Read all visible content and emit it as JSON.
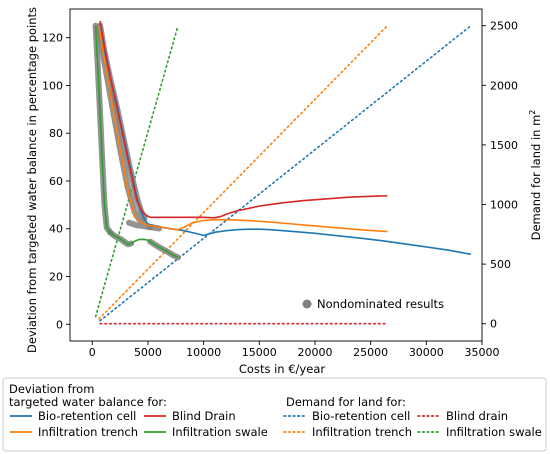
{
  "chart_data": {
    "type": "line",
    "xlabel": "Costs in €/year",
    "ylabel_left": "Deviation from targeted water balance in percentage points",
    "ylabel_right_base": "Demand for land in m",
    "ylabel_right_sup": "2",
    "xlim": [
      -2000,
      35000
    ],
    "ylim_left": [
      -7,
      132
    ],
    "ylim_right": [
      -145,
      2640
    ],
    "x_ticks": [
      0,
      5000,
      10000,
      15000,
      20000,
      25000,
      30000,
      35000
    ],
    "y_left_ticks": [
      0,
      20,
      40,
      60,
      80,
      100,
      120
    ],
    "y_right_ticks": [
      0,
      500,
      1000,
      1500,
      2000,
      2500
    ],
    "colors": {
      "bio": "#1f77b4",
      "trench": "#ff7f0e",
      "drain": "#d62728",
      "swale": "#2ca02c",
      "nondominated": "#808080"
    },
    "series": [
      {
        "name": "Bio-retention cell",
        "key": "bio",
        "axis": "left",
        "style": "solid",
        "x": [
          700,
          1100,
          1600,
          2200,
          2800,
          3400,
          4000,
          4400,
          4700,
          5000,
          6000,
          7000,
          8000,
          9000,
          10000,
          11000,
          12000,
          13000,
          14000,
          15000,
          16000,
          18000,
          20000,
          22000,
          24000,
          26000,
          28000,
          30000,
          32000,
          34000
        ],
        "y": [
          126,
          115,
          104,
          92,
          79,
          66,
          53,
          47,
          44,
          42,
          40.8,
          40,
          39.4,
          38.4,
          37.2,
          38.5,
          39.2,
          39.6,
          39.8,
          39.8,
          39.6,
          38.9,
          38.1,
          37.1,
          36.1,
          35,
          33.7,
          32.4,
          31,
          29.3
        ]
      },
      {
        "name": "Blind Drain",
        "key": "drain",
        "axis": "left",
        "style": "solid",
        "x": [
          700,
          1100,
          1600,
          2200,
          2800,
          3400,
          4000,
          4500,
          4900,
          5200,
          6000,
          8000,
          10000,
          11000,
          11600,
          12000,
          13000,
          15000,
          17000,
          19000,
          21000,
          23000,
          25000,
          26500
        ],
        "y": [
          127,
          116,
          104,
          91,
          78,
          65,
          52,
          47,
          45.5,
          44.8,
          44.8,
          44.8,
          44.8,
          44.6,
          45.2,
          46,
          47.5,
          49.5,
          50.8,
          51.8,
          52.5,
          53.2,
          53.6,
          53.8
        ]
      },
      {
        "name": "Infiltration trench",
        "key": "trench",
        "axis": "left",
        "style": "solid",
        "x": [
          600,
          1000,
          1500,
          2000,
          2600,
          3200,
          3800,
          4400,
          5000,
          6000,
          7000,
          7600,
          8200,
          9000,
          10000,
          11000,
          12000,
          13000,
          14000,
          16000,
          18000,
          20000,
          22000,
          24000,
          26500
        ],
        "y": [
          125,
          113,
          100,
          86,
          71,
          56,
          45,
          42.5,
          41.5,
          40.8,
          40,
          39.5,
          40.5,
          42.5,
          43.5,
          43.8,
          43.8,
          43.6,
          43.4,
          42.8,
          42,
          41.2,
          40.4,
          39.6,
          38.8
        ]
      },
      {
        "name": "Infiltration swale",
        "key": "swale",
        "axis": "left",
        "style": "solid",
        "x": [
          300,
          500,
          700,
          900,
          1100,
          1300,
          1600,
          2000,
          2600,
          3200,
          3500,
          3800,
          4200,
          4600,
          5000,
          5400,
          5800,
          6300,
          6800,
          7300,
          7700
        ],
        "y": [
          125,
          108,
          88,
          68,
          50,
          40.5,
          38.5,
          37,
          35.5,
          33.5,
          33.8,
          34.8,
          35.5,
          35.6,
          35.2,
          34,
          32.8,
          31.5,
          30.2,
          28.8,
          28
        ]
      },
      {
        "name": "Bio-retention cell",
        "key": "bio",
        "axis": "right",
        "style": "dotted",
        "x": [
          700,
          34000
        ],
        "y": [
          25,
          2500
        ]
      },
      {
        "name": "Blind drain",
        "key": "drain",
        "axis": "right",
        "style": "dotted",
        "x": [
          700,
          26500
        ],
        "y": [
          0,
          0
        ]
      },
      {
        "name": "Infiltration trench",
        "key": "trench",
        "axis": "right",
        "style": "dotted",
        "x": [
          600,
          26500
        ],
        "y": [
          40,
          2500
        ]
      },
      {
        "name": "Infiltration swale",
        "key": "swale",
        "axis": "right",
        "style": "dotted",
        "x": [
          300,
          7700
        ],
        "y": [
          60,
          2500
        ]
      }
    ],
    "nondominated": {
      "name": "Nondominated results",
      "paths": [
        {
          "x": [
            600,
            1000,
            1500,
            2000,
            2600,
            3200,
            3800,
            4200,
            4600
          ],
          "y": [
            124,
            112,
            99,
            86,
            71,
            57,
            47,
            44,
            43
          ]
        },
        {
          "x": [
            700,
            1100,
            1600,
            2200,
            2800,
            3400,
            4000,
            4400,
            4700
          ],
          "y": [
            125,
            114,
            103,
            91,
            78,
            65,
            53,
            47,
            44.5
          ]
        },
        {
          "x": [
            300,
            500,
            700,
            900,
            1100,
            1300,
            1600
          ],
          "y": [
            125,
            108,
            88,
            68,
            50,
            40.5,
            38.5
          ]
        },
        {
          "x": [
            1600,
            2000,
            2600,
            3200,
            3500
          ],
          "y": [
            38.5,
            37,
            35.5,
            33.5,
            33.8
          ]
        },
        {
          "x": [
            3300,
            4000,
            4800,
            5200
          ],
          "y": [
            42.5,
            41.5,
            41,
            40.6
          ]
        },
        {
          "x": [
            5200,
            5800,
            6300,
            6800,
            7300,
            7700
          ],
          "y": [
            34.6,
            32.8,
            31.5,
            30.2,
            28.8,
            28
          ]
        },
        {
          "x": [
            5100,
            5600,
            6000
          ],
          "y": [
            40.8,
            40.4,
            40.1
          ]
        }
      ]
    },
    "legend": {
      "inner_label": "Nondominated results",
      "inner_placement": "lower-right",
      "dev_title_1": "Deviation from",
      "dev_title_2": "targeted water balance for:",
      "land_title": "Demand for land for:",
      "dev_items": [
        {
          "label": "Bio-retention cell",
          "key": "bio"
        },
        {
          "label": "Blind Drain",
          "key": "drain"
        },
        {
          "label": "Infiltration trench",
          "key": "trench"
        },
        {
          "label": "Infiltration swale",
          "key": "swale"
        }
      ],
      "land_items": [
        {
          "label": "Bio-retention cell",
          "key": "bio"
        },
        {
          "label": "Blind drain",
          "key": "drain"
        },
        {
          "label": "Infiltration trench",
          "key": "trench"
        },
        {
          "label": "Infiltration swale",
          "key": "swale"
        }
      ]
    }
  }
}
